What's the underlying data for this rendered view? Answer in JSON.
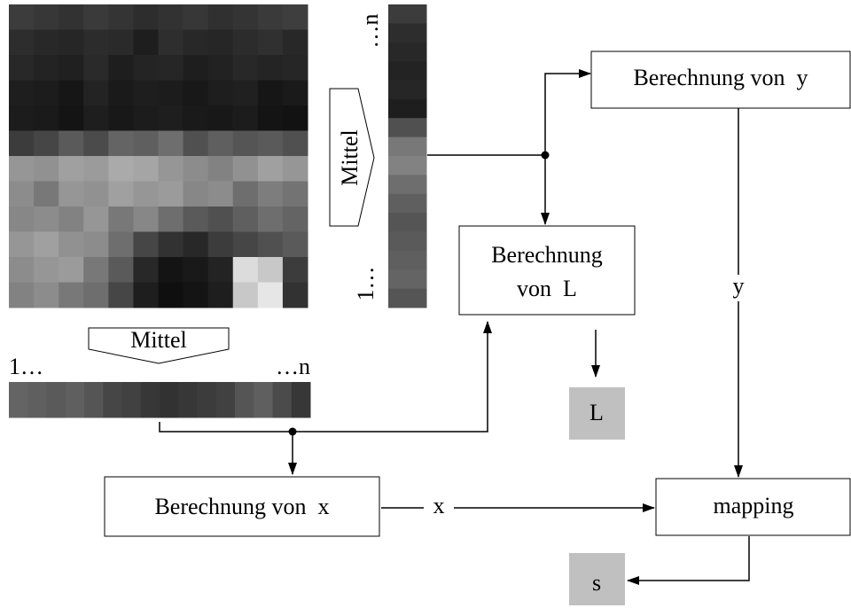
{
  "image_averaging": {
    "vertical_label": "Mittel",
    "vertical_end": "…n",
    "vertical_start": "1…",
    "horizontal_label": "Mittel",
    "horizontal_start": "1…",
    "horizontal_end": "…n"
  },
  "nodes": [
    {
      "label": "Berechnung von  y"
    },
    {
      "lines": [
        "Berechnung",
        "von  L"
      ]
    },
    {
      "label": "Berechnung von  x"
    },
    {
      "label": "mapping"
    }
  ],
  "edge_labels": [
    "y",
    "x"
  ],
  "outputs": [
    "L",
    "s"
  ]
}
